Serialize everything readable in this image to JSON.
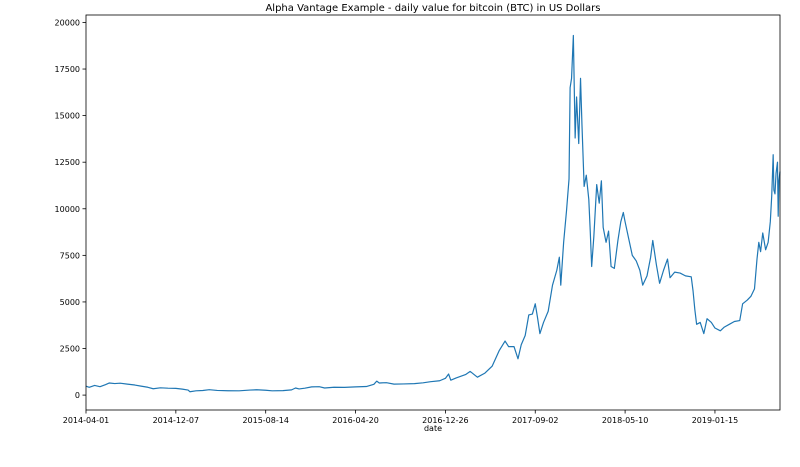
{
  "chart_data": {
    "type": "line",
    "title": "Alpha Vantage Example - daily value for bitcoin (BTC) in US Dollars",
    "xlabel": "date",
    "ylabel": "",
    "x_tick_labels": [
      "2014-04-01",
      "2014-12-07",
      "2015-08-14",
      "2016-04-20",
      "2016-12-26",
      "2017-09-02",
      "2018-05-10",
      "2019-01-15"
    ],
    "y_tick_labels": [
      "0",
      "2500",
      "5000",
      "7500",
      "10000",
      "12500",
      "15000",
      "17500",
      "20000"
    ],
    "y_ticks": [
      0,
      2500,
      5000,
      7500,
      10000,
      12500,
      15000,
      17500,
      20000
    ],
    "xlim": [
      "2014-04-01",
      "2019-07-15"
    ],
    "ylim": [
      -800,
      20400
    ],
    "grid": false,
    "series": [
      {
        "color": "#1f77b4",
        "points": [
          [
            "2014-04-01",
            480
          ],
          [
            "2014-04-10",
            420
          ],
          [
            "2014-04-25",
            520
          ],
          [
            "2014-05-10",
            450
          ],
          [
            "2014-05-25",
            560
          ],
          [
            "2014-06-05",
            650
          ],
          [
            "2014-06-20",
            620
          ],
          [
            "2014-07-05",
            640
          ],
          [
            "2014-07-25",
            590
          ],
          [
            "2014-08-15",
            540
          ],
          [
            "2014-09-01",
            480
          ],
          [
            "2014-09-20",
            420
          ],
          [
            "2014-10-05",
            340
          ],
          [
            "2014-10-25",
            390
          ],
          [
            "2014-11-15",
            370
          ],
          [
            "2014-12-07",
            360
          ],
          [
            "2014-12-25",
            320
          ],
          [
            "2015-01-10",
            270
          ],
          [
            "2015-01-15",
            180
          ],
          [
            "2015-02-01",
            230
          ],
          [
            "2015-02-20",
            245
          ],
          [
            "2015-03-10",
            290
          ],
          [
            "2015-04-01",
            250
          ],
          [
            "2015-05-01",
            235
          ],
          [
            "2015-06-01",
            230
          ],
          [
            "2015-07-01",
            270
          ],
          [
            "2015-07-20",
            285
          ],
          [
            "2015-08-14",
            260
          ],
          [
            "2015-09-01",
            230
          ],
          [
            "2015-10-01",
            240
          ],
          [
            "2015-10-25",
            280
          ],
          [
            "2015-11-05",
            380
          ],
          [
            "2015-11-15",
            330
          ],
          [
            "2015-12-01",
            370
          ],
          [
            "2015-12-20",
            440
          ],
          [
            "2016-01-10",
            450
          ],
          [
            "2016-01-25",
            380
          ],
          [
            "2016-02-20",
            420
          ],
          [
            "2016-03-20",
            415
          ],
          [
            "2016-04-20",
            440
          ],
          [
            "2016-05-20",
            460
          ],
          [
            "2016-06-10",
            580
          ],
          [
            "2016-06-18",
            750
          ],
          [
            "2016-06-25",
            650
          ],
          [
            "2016-07-15",
            665
          ],
          [
            "2016-08-05",
            590
          ],
          [
            "2016-09-01",
            600
          ],
          [
            "2016-10-01",
            615
          ],
          [
            "2016-10-25",
            660
          ],
          [
            "2016-11-15",
            720
          ],
          [
            "2016-12-10",
            770
          ],
          [
            "2016-12-26",
            900
          ],
          [
            "2017-01-04",
            1130
          ],
          [
            "2017-01-10",
            800
          ],
          [
            "2017-01-25",
            920
          ],
          [
            "2017-02-20",
            1100
          ],
          [
            "2017-03-05",
            1270
          ],
          [
            "2017-03-25",
            960
          ],
          [
            "2017-04-15",
            1180
          ],
          [
            "2017-05-05",
            1550
          ],
          [
            "2017-05-25",
            2400
          ],
          [
            "2017-06-10",
            2900
          ],
          [
            "2017-06-20",
            2600
          ],
          [
            "2017-07-05",
            2600
          ],
          [
            "2017-07-16",
            1950
          ],
          [
            "2017-07-25",
            2700
          ],
          [
            "2017-08-05",
            3200
          ],
          [
            "2017-08-15",
            4300
          ],
          [
            "2017-08-25",
            4350
          ],
          [
            "2017-09-02",
            4900
          ],
          [
            "2017-09-08",
            4200
          ],
          [
            "2017-09-15",
            3300
          ],
          [
            "2017-09-25",
            3900
          ],
          [
            "2017-10-08",
            4500
          ],
          [
            "2017-10-20",
            5900
          ],
          [
            "2017-11-01",
            6700
          ],
          [
            "2017-11-08",
            7400
          ],
          [
            "2017-11-12",
            5900
          ],
          [
            "2017-11-20",
            8200
          ],
          [
            "2017-11-28",
            9900
          ],
          [
            "2017-12-05",
            11600
          ],
          [
            "2017-12-08",
            16500
          ],
          [
            "2017-12-12",
            17000
          ],
          [
            "2017-12-17",
            19300
          ],
          [
            "2017-12-20",
            16000
          ],
          [
            "2017-12-22",
            13800
          ],
          [
            "2017-12-26",
            16000
          ],
          [
            "2018-01-01",
            13500
          ],
          [
            "2018-01-06",
            17000
          ],
          [
            "2018-01-10",
            14500
          ],
          [
            "2018-01-16",
            11200
          ],
          [
            "2018-01-22",
            11800
          ],
          [
            "2018-01-29",
            10500
          ],
          [
            "2018-02-02",
            8800
          ],
          [
            "2018-02-06",
            6900
          ],
          [
            "2018-02-12",
            8500
          ],
          [
            "2018-02-20",
            11300
          ],
          [
            "2018-02-27",
            10300
          ],
          [
            "2018-03-05",
            11500
          ],
          [
            "2018-03-10",
            9000
          ],
          [
            "2018-03-18",
            8200
          ],
          [
            "2018-03-25",
            8800
          ],
          [
            "2018-04-01",
            6900
          ],
          [
            "2018-04-10",
            6800
          ],
          [
            "2018-04-20",
            8300
          ],
          [
            "2018-04-28",
            9300
          ],
          [
            "2018-05-05",
            9800
          ],
          [
            "2018-05-10",
            9300
          ],
          [
            "2018-05-20",
            8400
          ],
          [
            "2018-05-30",
            7500
          ],
          [
            "2018-06-10",
            7200
          ],
          [
            "2018-06-20",
            6700
          ],
          [
            "2018-06-28",
            5900
          ],
          [
            "2018-07-10",
            6400
          ],
          [
            "2018-07-20",
            7400
          ],
          [
            "2018-07-26",
            8300
          ],
          [
            "2018-08-05",
            7000
          ],
          [
            "2018-08-14",
            6000
          ],
          [
            "2018-08-25",
            6700
          ],
          [
            "2018-09-05",
            7300
          ],
          [
            "2018-09-12",
            6300
          ],
          [
            "2018-09-25",
            6600
          ],
          [
            "2018-10-10",
            6550
          ],
          [
            "2018-10-25",
            6400
          ],
          [
            "2018-11-10",
            6350
          ],
          [
            "2018-11-15",
            5600
          ],
          [
            "2018-11-20",
            4600
          ],
          [
            "2018-11-25",
            3800
          ],
          [
            "2018-12-05",
            3900
          ],
          [
            "2018-12-15",
            3300
          ],
          [
            "2018-12-24",
            4100
          ],
          [
            "2019-01-05",
            3900
          ],
          [
            "2019-01-15",
            3600
          ],
          [
            "2019-01-30",
            3450
          ],
          [
            "2019-02-10",
            3650
          ],
          [
            "2019-02-24",
            3800
          ],
          [
            "2019-03-10",
            3950
          ],
          [
            "2019-03-25",
            4000
          ],
          [
            "2019-04-02",
            4900
          ],
          [
            "2019-04-15",
            5100
          ],
          [
            "2019-04-25",
            5300
          ],
          [
            "2019-05-05",
            5700
          ],
          [
            "2019-05-12",
            7300
          ],
          [
            "2019-05-17",
            8200
          ],
          [
            "2019-05-22",
            7700
          ],
          [
            "2019-05-28",
            8700
          ],
          [
            "2019-06-05",
            7800
          ],
          [
            "2019-06-12",
            8200
          ],
          [
            "2019-06-18",
            9300
          ],
          [
            "2019-06-22",
            10700
          ],
          [
            "2019-06-26",
            12900
          ],
          [
            "2019-06-28",
            11000
          ],
          [
            "2019-07-01",
            10800
          ],
          [
            "2019-07-04",
            11900
          ],
          [
            "2019-07-08",
            12500
          ],
          [
            "2019-07-10",
            9600
          ],
          [
            "2019-07-12",
            11500
          ],
          [
            "2019-07-15",
            12000
          ]
        ]
      }
    ]
  }
}
